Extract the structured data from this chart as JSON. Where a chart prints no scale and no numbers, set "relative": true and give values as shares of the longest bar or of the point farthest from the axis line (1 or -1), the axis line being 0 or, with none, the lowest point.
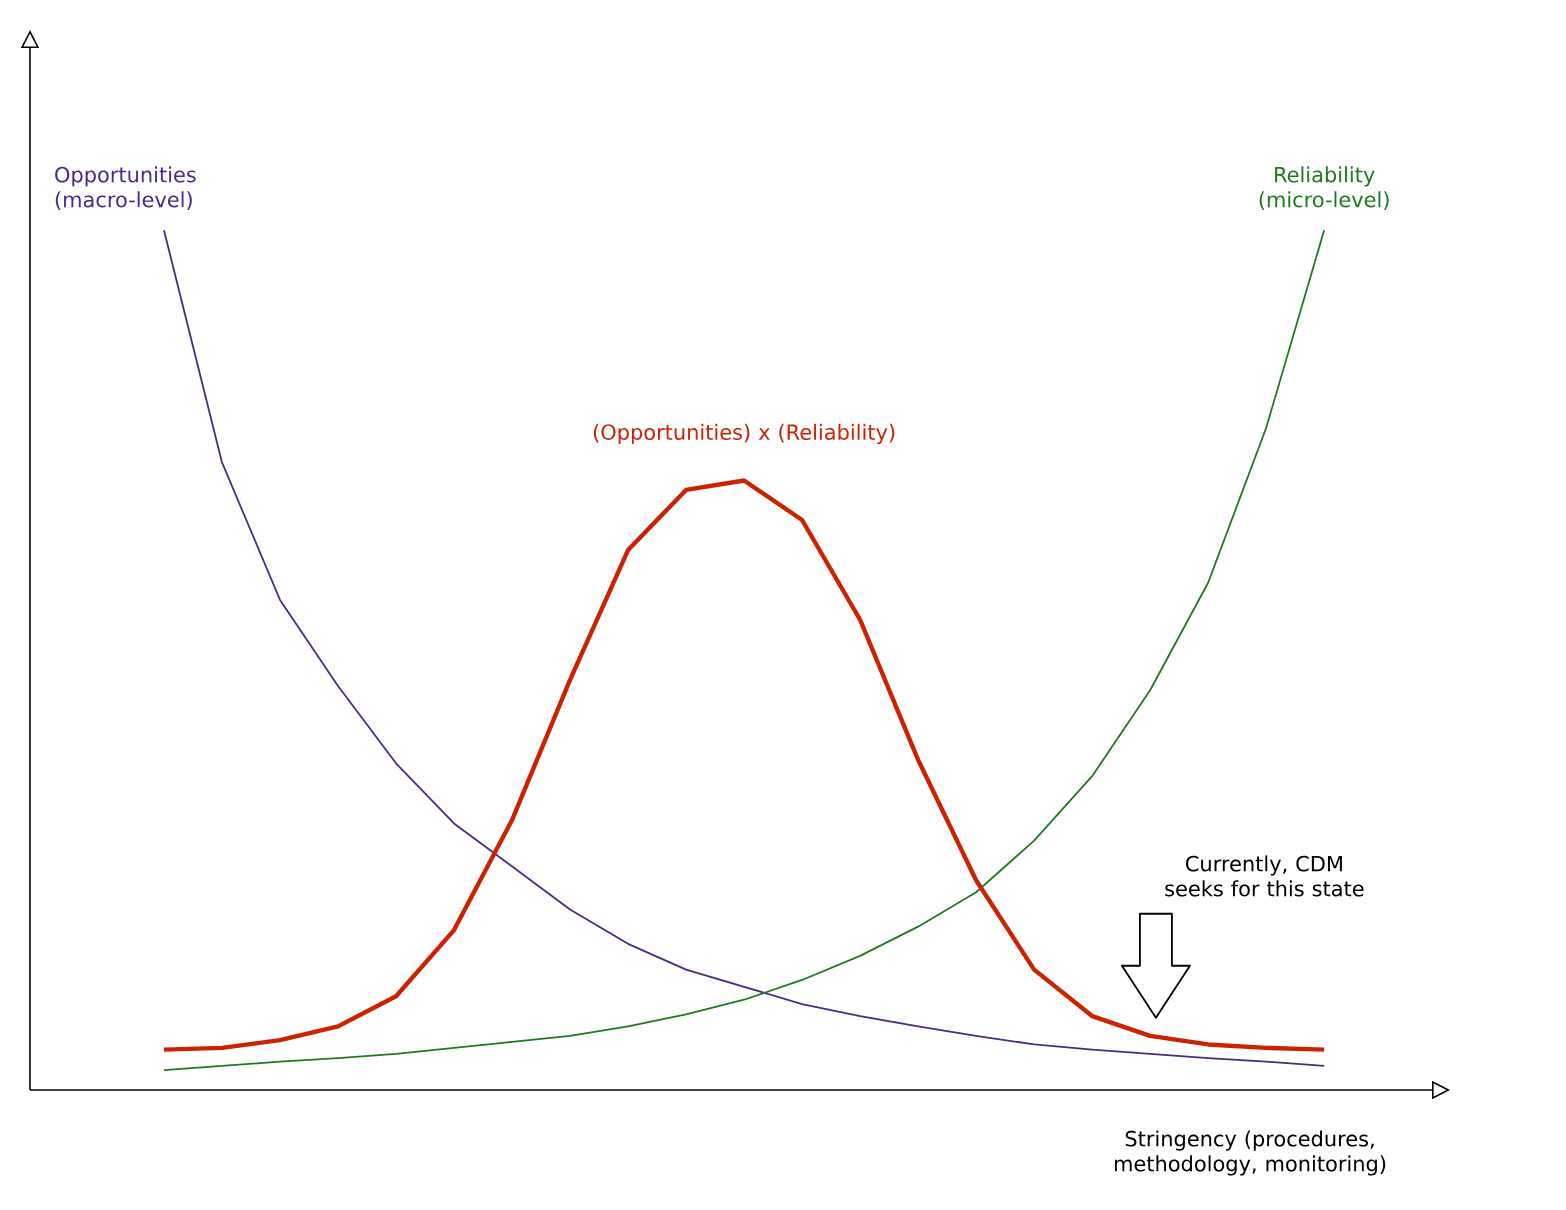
{
  "chart_data": {
    "type": "line",
    "relative": true,
    "xlabel": "Stringency (procedures, methodology, monitoring)",
    "categories": [
      null,
      null,
      null,
      null,
      null,
      null,
      null,
      null,
      null,
      null,
      null,
      null,
      null,
      null,
      null,
      null,
      null,
      null,
      null,
      null,
      null
    ],
    "series": [
      {
        "name": "Opportunities (macro-level)",
        "color": "#4b2a8c",
        "values": [
          1.0,
          0.73,
          0.57,
          0.47,
          0.38,
          0.31,
          0.26,
          0.21,
          0.17,
          0.14,
          0.12,
          0.1,
          0.086,
          0.074,
          0.063,
          0.053,
          0.047,
          0.042,
          0.037,
          0.033,
          0.028
        ]
      },
      {
        "name": "Reliability (micro-level)",
        "color": "#1f7a1f",
        "values": [
          0.023,
          0.028,
          0.033,
          0.037,
          0.042,
          0.049,
          0.056,
          0.063,
          0.074,
          0.088,
          0.105,
          0.128,
          0.156,
          0.19,
          0.23,
          0.29,
          0.365,
          0.465,
          0.59,
          0.77,
          1.0
        ]
      },
      {
        "name": "(Opportunities) x (Reliability)",
        "color": "#cc2200",
        "values": [
          0.047,
          0.049,
          0.058,
          0.074,
          0.109,
          0.186,
          0.314,
          0.477,
          0.628,
          0.698,
          0.709,
          0.663,
          0.547,
          0.384,
          0.244,
          0.14,
          0.086,
          0.063,
          0.053,
          0.049,
          0.047
        ]
      }
    ],
    "annotations": [
      "Currently, CDM seeks for this state"
    ]
  }
}
